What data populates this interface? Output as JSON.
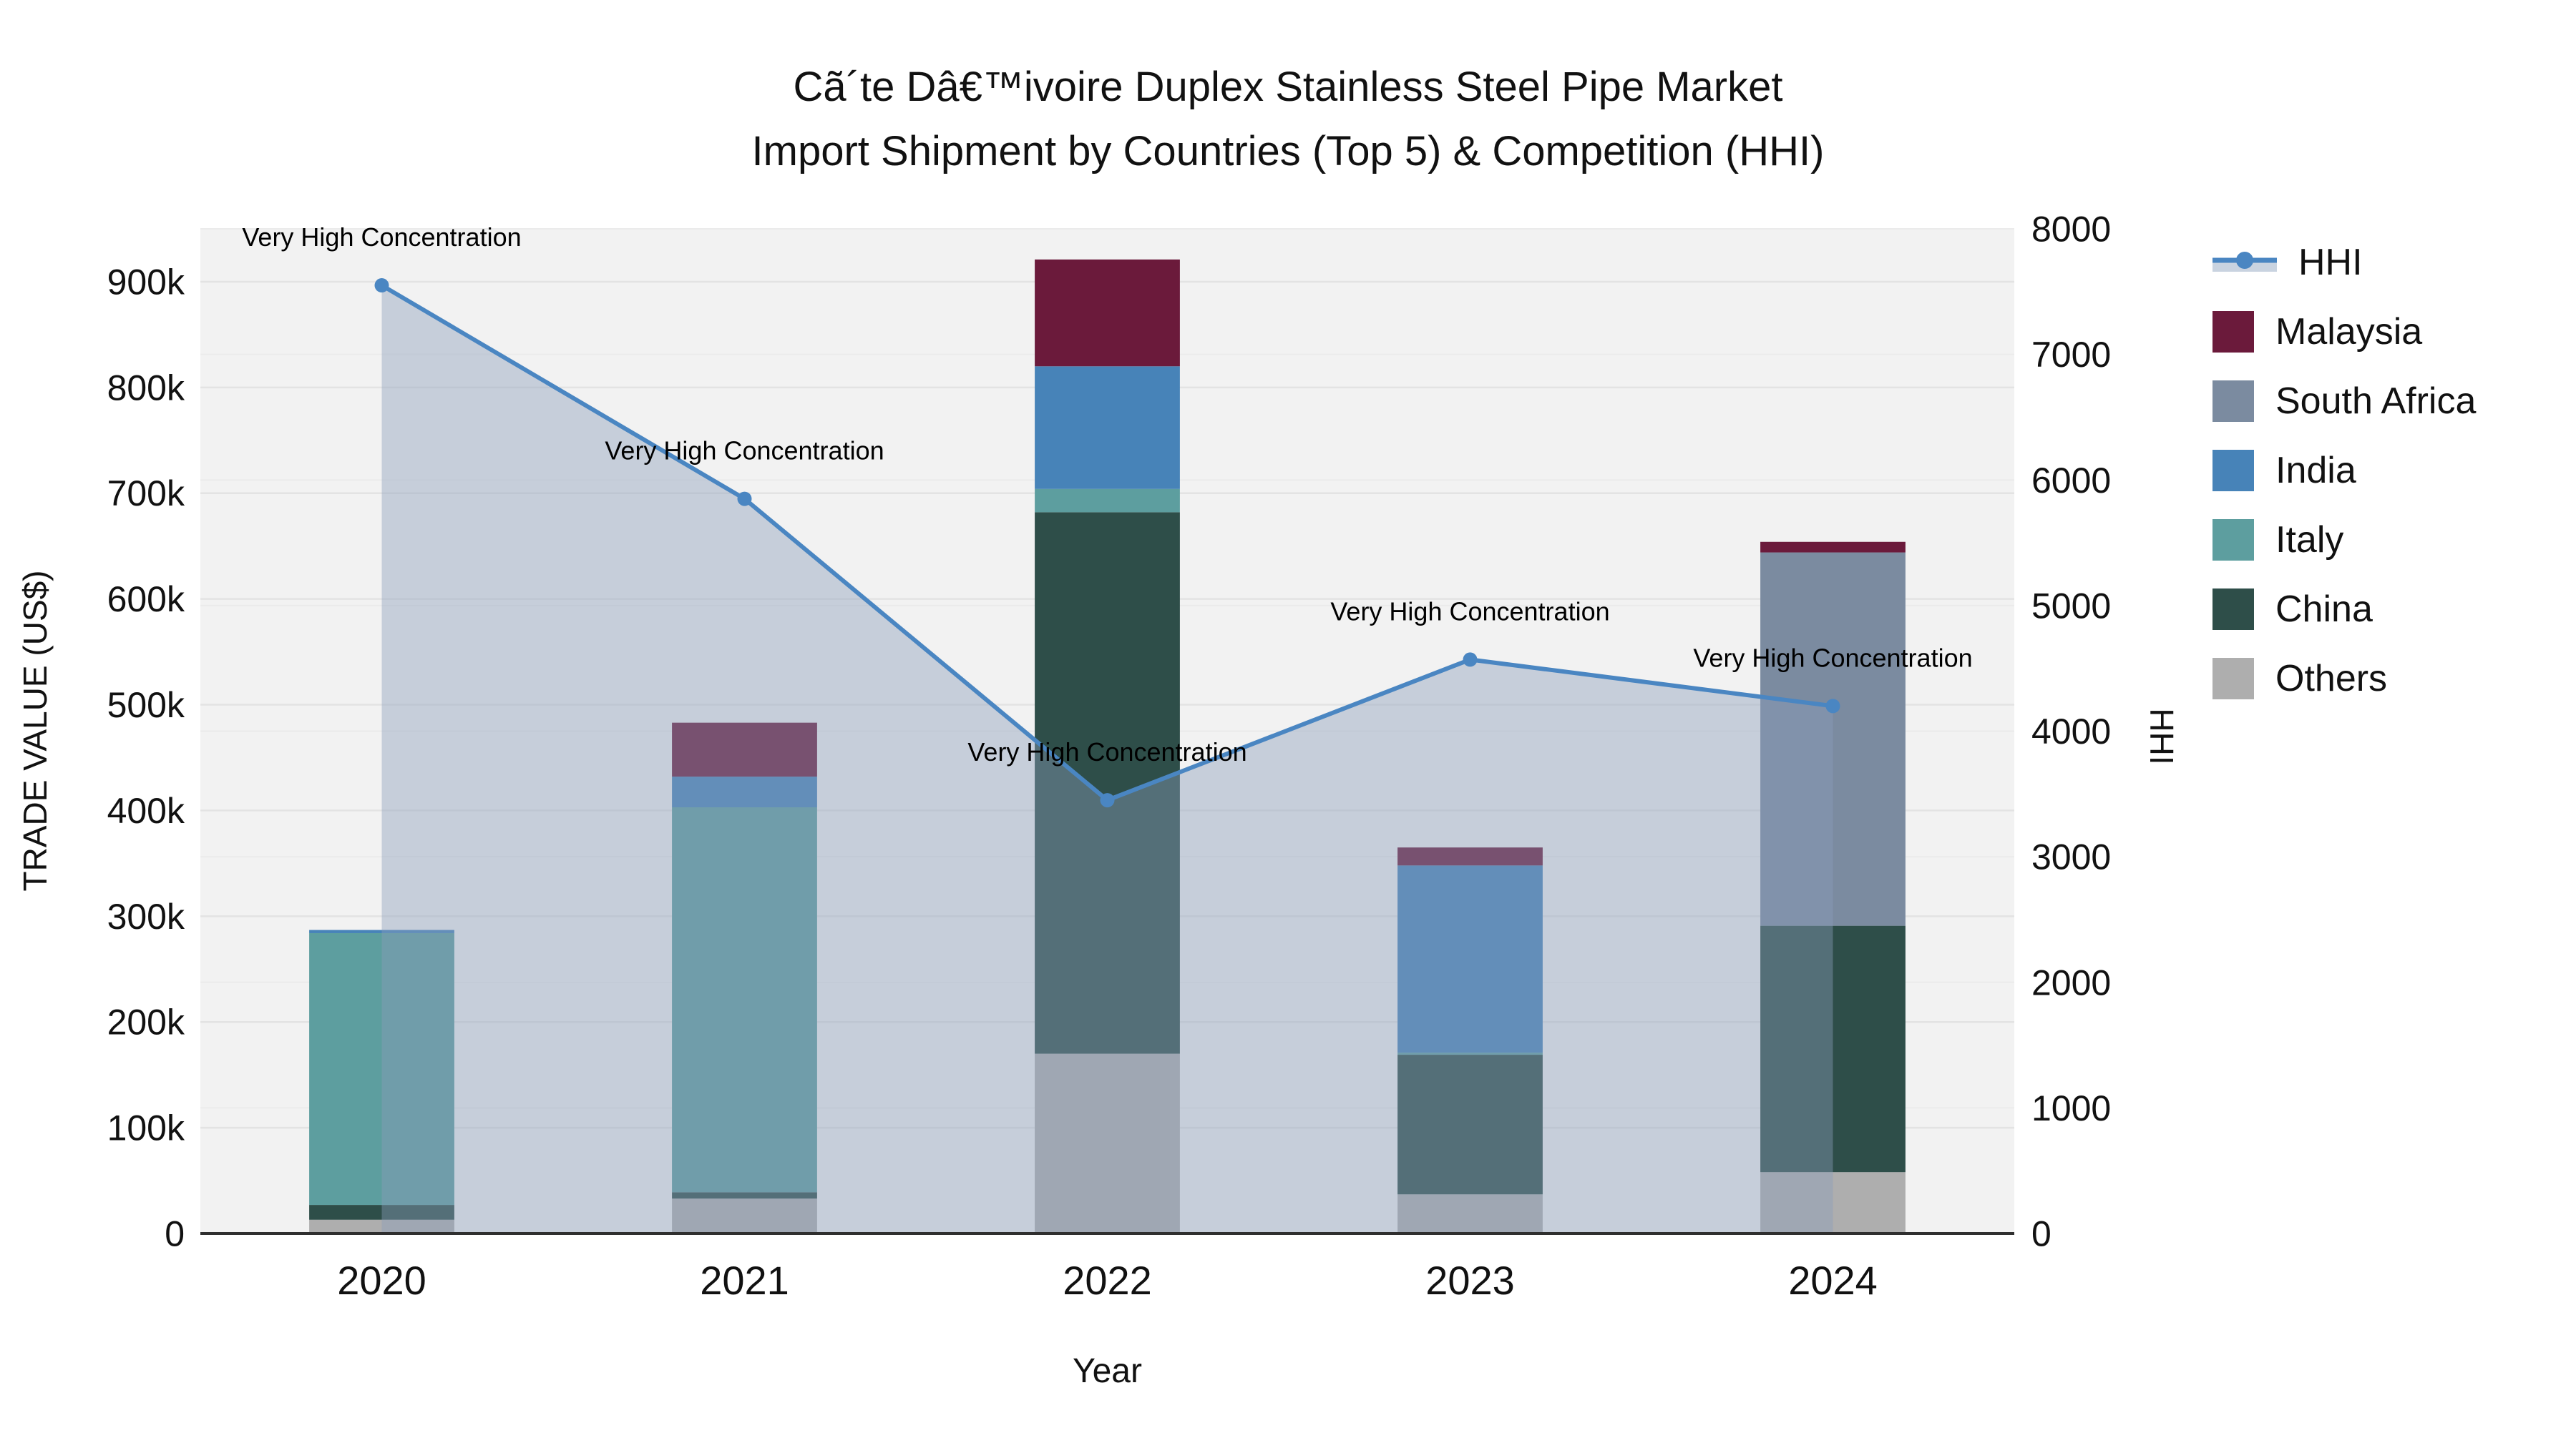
{
  "title": {
    "line1": "Cã´te Dâ€™ivoire Duplex Stainless Steel Pipe Market",
    "line2": "Import Shipment by Countries (Top 5) & Competition (HHI)"
  },
  "legend": {
    "items": [
      {
        "label": "HHI",
        "type": "line",
        "color": "#4a86c2",
        "band_color": "#c9d3e0"
      },
      {
        "label": "Malaysia",
        "type": "square",
        "color": "#6b1a3b"
      },
      {
        "label": "South Africa",
        "type": "square",
        "color": "#7b8ba0"
      },
      {
        "label": "India",
        "type": "square",
        "color": "#4783b8"
      },
      {
        "label": "Italy",
        "type": "square",
        "color": "#5d9e9f"
      },
      {
        "label": "China",
        "type": "square",
        "color": "#2e4e49"
      },
      {
        "label": "Others",
        "type": "square",
        "color": "#aeaeae"
      }
    ]
  },
  "chart_data": {
    "type": "bar",
    "subtype": "stacked-bars-with-hhi-line",
    "categories": [
      "2020",
      "2021",
      "2022",
      "2023",
      "2024"
    ],
    "series": [
      {
        "name": "Others",
        "color": "#aeaeae",
        "values": [
          13000,
          33000,
          170000,
          37000,
          58000
        ]
      },
      {
        "name": "China",
        "color": "#2e4e49",
        "values": [
          14000,
          6000,
          512000,
          132000,
          233000
        ]
      },
      {
        "name": "Italy",
        "color": "#5d9e9f",
        "values": [
          257000,
          364000,
          22000,
          2000,
          0
        ]
      },
      {
        "name": "India",
        "color": "#4783b8",
        "values": [
          3000,
          29000,
          116000,
          177000,
          0
        ]
      },
      {
        "name": "South Africa",
        "color": "#7b8ba0",
        "values": [
          0,
          0,
          0,
          0,
          353000
        ]
      },
      {
        "name": "Malaysia",
        "color": "#6b1a3b",
        "values": [
          0,
          51000,
          101000,
          17000,
          10000
        ]
      }
    ],
    "bar_totals": [
      287000,
      483000,
      921000,
      365000,
      654000
    ],
    "line_series": {
      "name": "HHI",
      "color": "#4a86c2",
      "area_color": "rgba(139,158,186,0.42)",
      "values": [
        7550,
        5850,
        3450,
        4570,
        4200
      ]
    },
    "left_axis": {
      "title": "TRADE VALUE (US$)",
      "max": 950000,
      "tick_values": [
        0,
        100000,
        200000,
        300000,
        400000,
        500000,
        600000,
        700000,
        800000,
        900000
      ],
      "tick_labels": [
        "0",
        "100k",
        "200k",
        "300k",
        "400k",
        "500k",
        "600k",
        "700k",
        "800k",
        "900k"
      ]
    },
    "right_axis": {
      "title": "HHI",
      "max": 8000,
      "tick_values": [
        0,
        1000,
        2000,
        3000,
        4000,
        5000,
        6000,
        7000,
        8000
      ],
      "tick_labels": [
        "0",
        "1000",
        "2000",
        "3000",
        "4000",
        "5000",
        "6000",
        "7000",
        "8000"
      ]
    },
    "xlabel": "Year",
    "annotations": [
      {
        "text": "Very High Concentration",
        "category": "2020"
      },
      {
        "text": "Very High Concentration",
        "category": "2021"
      },
      {
        "text": "Very High Concentration",
        "category": "2022"
      },
      {
        "text": "Very High Concentration",
        "category": "2023"
      },
      {
        "text": "Very High Concentration",
        "category": "2024"
      }
    ],
    "plot_bg": "#f2f2f2",
    "grid_color": "#e3e3e3",
    "grid_color_secondary": "#ebebeb",
    "axis_line_color": "#2f2f2f",
    "text_color": "#111111"
  }
}
